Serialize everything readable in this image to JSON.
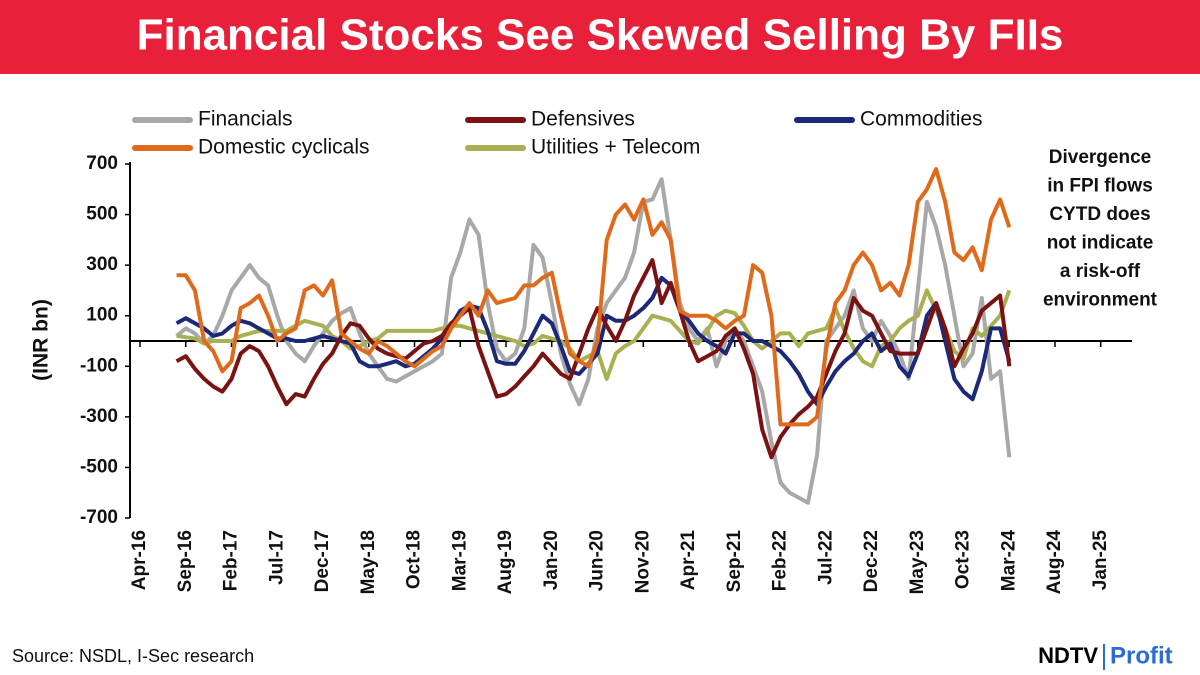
{
  "chart_data": {
    "type": "line",
    "title": "Financial Stocks See Skewed Selling By FIIs",
    "y_label": "(INR bn)",
    "annotation": [
      "Divergence",
      "in FPI flows",
      "CYTD does",
      "not indicate",
      "a risk-off",
      "environment"
    ],
    "categories": [
      "Apr-16",
      null,
      null,
      null,
      null,
      "Sep-16",
      null,
      null,
      null,
      null,
      "Feb-17",
      null,
      null,
      null,
      null,
      "Jul-17",
      null,
      null,
      null,
      null,
      "Dec-17",
      null,
      null,
      null,
      null,
      "May-18",
      null,
      null,
      null,
      null,
      "Oct-18",
      null,
      null,
      null,
      null,
      "Mar-19",
      null,
      null,
      null,
      null,
      "Aug-19",
      null,
      null,
      null,
      null,
      "Jan-20",
      null,
      null,
      null,
      null,
      "Jun-20",
      null,
      null,
      null,
      null,
      "Nov-20",
      null,
      null,
      null,
      null,
      "Apr-21",
      null,
      null,
      null,
      null,
      "Sep-21",
      null,
      null,
      null,
      null,
      "Feb-22",
      null,
      null,
      null,
      null,
      "Jul-22",
      null,
      null,
      null,
      null,
      "Dec-22",
      null,
      null,
      null,
      null,
      "May-23",
      null,
      null,
      null,
      null,
      "Oct-23",
      null,
      null,
      null,
      null,
      "Mar-24",
      null,
      null,
      null,
      null,
      "Aug-24",
      null,
      null,
      null,
      null,
      "Jan-25"
    ],
    "series": [
      {
        "name": "Financials",
        "color": "#a8a8a8",
        "values": [
          null,
          null,
          null,
          null,
          20,
          50,
          30,
          -10,
          20,
          100,
          200,
          250,
          300,
          250,
          220,
          100,
          0,
          -50,
          -80,
          -20,
          30,
          80,
          110,
          130,
          30,
          -50,
          -100,
          -150,
          -160,
          -140,
          -120,
          -100,
          -80,
          -50,
          250,
          350,
          480,
          420,
          150,
          -30,
          -80,
          -50,
          50,
          380,
          330,
          150,
          -50,
          -170,
          -250,
          -150,
          50,
          150,
          200,
          250,
          350,
          550,
          560,
          640,
          400,
          150,
          50,
          0,
          50,
          -100,
          0,
          50,
          0,
          -100,
          -200,
          -400,
          -560,
          -600,
          -620,
          -640,
          -450,
          0,
          50,
          100,
          200,
          50,
          0,
          80,
          20,
          -50,
          -150,
          200,
          550,
          450,
          300,
          100,
          -100,
          -50,
          170,
          -150,
          -120,
          -460,
          null,
          null,
          null,
          null,
          null,
          null,
          null,
          null,
          null,
          null
        ]
      },
      {
        "name": "Defensives",
        "color": "#7a1212",
        "values": [
          null,
          null,
          null,
          null,
          -80,
          -60,
          -110,
          -150,
          -180,
          -200,
          -150,
          -50,
          -20,
          -40,
          -100,
          -180,
          -250,
          -210,
          -220,
          -150,
          -90,
          -50,
          20,
          70,
          60,
          10,
          -30,
          -50,
          -60,
          -70,
          -40,
          -10,
          0,
          20,
          70,
          100,
          130,
          -20,
          -120,
          -220,
          -210,
          -180,
          -140,
          -100,
          -50,
          -90,
          -130,
          -150,
          -50,
          50,
          130,
          60,
          0,
          80,
          180,
          250,
          320,
          150,
          230,
          120,
          0,
          -80,
          -60,
          -40,
          20,
          50,
          -30,
          -130,
          -350,
          -460,
          -380,
          -330,
          -290,
          -260,
          -220,
          -130,
          -40,
          30,
          170,
          120,
          100,
          30,
          -40,
          -50,
          -50,
          -50,
          50,
          150,
          50,
          -100,
          -30,
          30,
          120,
          150,
          180,
          -100,
          null,
          null,
          null,
          null,
          null,
          null,
          null,
          null,
          null,
          null
        ]
      },
      {
        "name": "Commodities",
        "color": "#1c2878",
        "values": [
          null,
          null,
          null,
          null,
          70,
          90,
          70,
          50,
          20,
          30,
          60,
          80,
          70,
          50,
          30,
          10,
          10,
          0,
          0,
          10,
          20,
          10,
          0,
          -10,
          -80,
          -100,
          -100,
          -90,
          -80,
          -100,
          -90,
          -60,
          -30,
          10,
          60,
          120,
          140,
          130,
          40,
          -80,
          -90,
          -90,
          -40,
          30,
          100,
          70,
          -20,
          -120,
          -130,
          -90,
          -50,
          100,
          80,
          80,
          100,
          130,
          170,
          250,
          220,
          120,
          80,
          30,
          0,
          -20,
          -50,
          30,
          30,
          0,
          0,
          -20,
          -40,
          -80,
          -130,
          -200,
          -250,
          -180,
          -120,
          -80,
          -50,
          0,
          30,
          -40,
          -10,
          -100,
          -140,
          -50,
          100,
          150,
          0,
          -150,
          -200,
          -230,
          -120,
          50,
          50,
          -80,
          null,
          null,
          null,
          null,
          null,
          null,
          null,
          null,
          null,
          null
        ]
      },
      {
        "name": "Domestic cyclicals",
        "color": "#e06a1b",
        "values": [
          null,
          null,
          null,
          null,
          260,
          260,
          200,
          0,
          -40,
          -120,
          -80,
          130,
          150,
          180,
          100,
          0,
          30,
          50,
          200,
          220,
          180,
          240,
          30,
          0,
          -30,
          -50,
          0,
          -20,
          -50,
          -80,
          -100,
          -70,
          -40,
          -20,
          50,
          100,
          150,
          100,
          200,
          150,
          160,
          170,
          220,
          220,
          250,
          270,
          100,
          -50,
          -80,
          -100,
          0,
          400,
          500,
          540,
          480,
          560,
          420,
          470,
          400,
          120,
          100,
          100,
          100,
          80,
          50,
          80,
          100,
          300,
          270,
          100,
          -330,
          -330,
          -330,
          -330,
          -300,
          -30,
          150,
          200,
          300,
          350,
          300,
          200,
          230,
          180,
          300,
          550,
          600,
          680,
          550,
          350,
          320,
          370,
          280,
          480,
          560,
          450,
          null,
          null,
          null,
          null,
          null,
          null,
          null,
          null,
          null,
          null
        ]
      },
      {
        "name": "Utilities + Telecom",
        "color": "#a9b052",
        "values": [
          null,
          null,
          null,
          null,
          20,
          15,
          10,
          -10,
          0,
          0,
          0,
          20,
          30,
          40,
          40,
          40,
          40,
          60,
          80,
          70,
          60,
          20,
          0,
          -30,
          -20,
          0,
          10,
          40,
          40,
          40,
          40,
          40,
          40,
          50,
          60,
          60,
          50,
          40,
          30,
          20,
          10,
          0,
          -20,
          -10,
          20,
          10,
          0,
          -30,
          -80,
          -60,
          -40,
          -150,
          -50,
          -20,
          0,
          50,
          100,
          90,
          80,
          40,
          0,
          -10,
          40,
          100,
          120,
          110,
          60,
          0,
          -30,
          0,
          30,
          30,
          -20,
          30,
          40,
          50,
          130,
          40,
          -30,
          -80,
          -100,
          -20,
          0,
          50,
          80,
          100,
          200,
          120,
          50,
          -40,
          -70,
          50,
          20,
          60,
          100,
          200,
          null,
          null,
          null,
          null,
          null,
          null,
          null,
          null,
          null,
          null
        ]
      }
    ],
    "ylim": [
      -700,
      700
    ],
    "yticks": [
      -700,
      -500,
      -300,
      -100,
      100,
      300,
      500,
      700
    ],
    "grid": false
  },
  "source": "Source: NSDL, I-Sec research",
  "brand": {
    "name": "NDTV",
    "product": "Profit"
  }
}
